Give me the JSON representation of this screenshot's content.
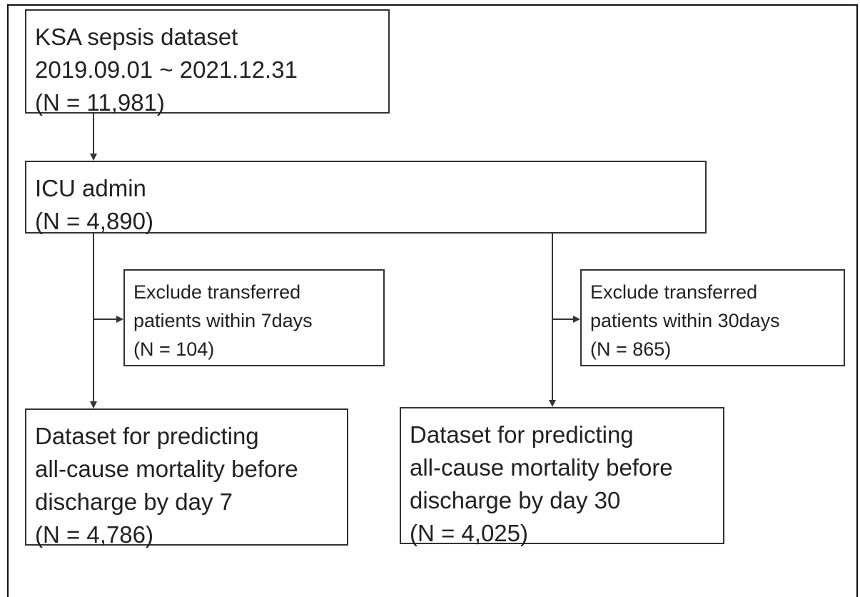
{
  "flowchart": {
    "source": {
      "lines": [
        "KSA sepsis dataset",
        "2019.09.01 ~ 2021.12.31",
        "(N = 11,981)"
      ]
    },
    "icu": {
      "lines": [
        "ICU admin",
        "(N = 4,890)"
      ]
    },
    "exclude_7": {
      "lines": [
        "Exclude transferred",
        "patients within 7days",
        "(N = 104)"
      ]
    },
    "exclude_30": {
      "lines": [
        "Exclude transferred",
        "patients within 30days",
        "(N = 865)"
      ]
    },
    "dataset_7": {
      "lines": [
        "Dataset for predicting",
        "all-cause mortality before",
        "discharge by day 7",
        "(N = 4,786)"
      ]
    },
    "dataset_30": {
      "lines": [
        "Dataset for predicting",
        "all-cause mortality before",
        "discharge by day 30",
        "(N = 4,025)"
      ]
    }
  }
}
